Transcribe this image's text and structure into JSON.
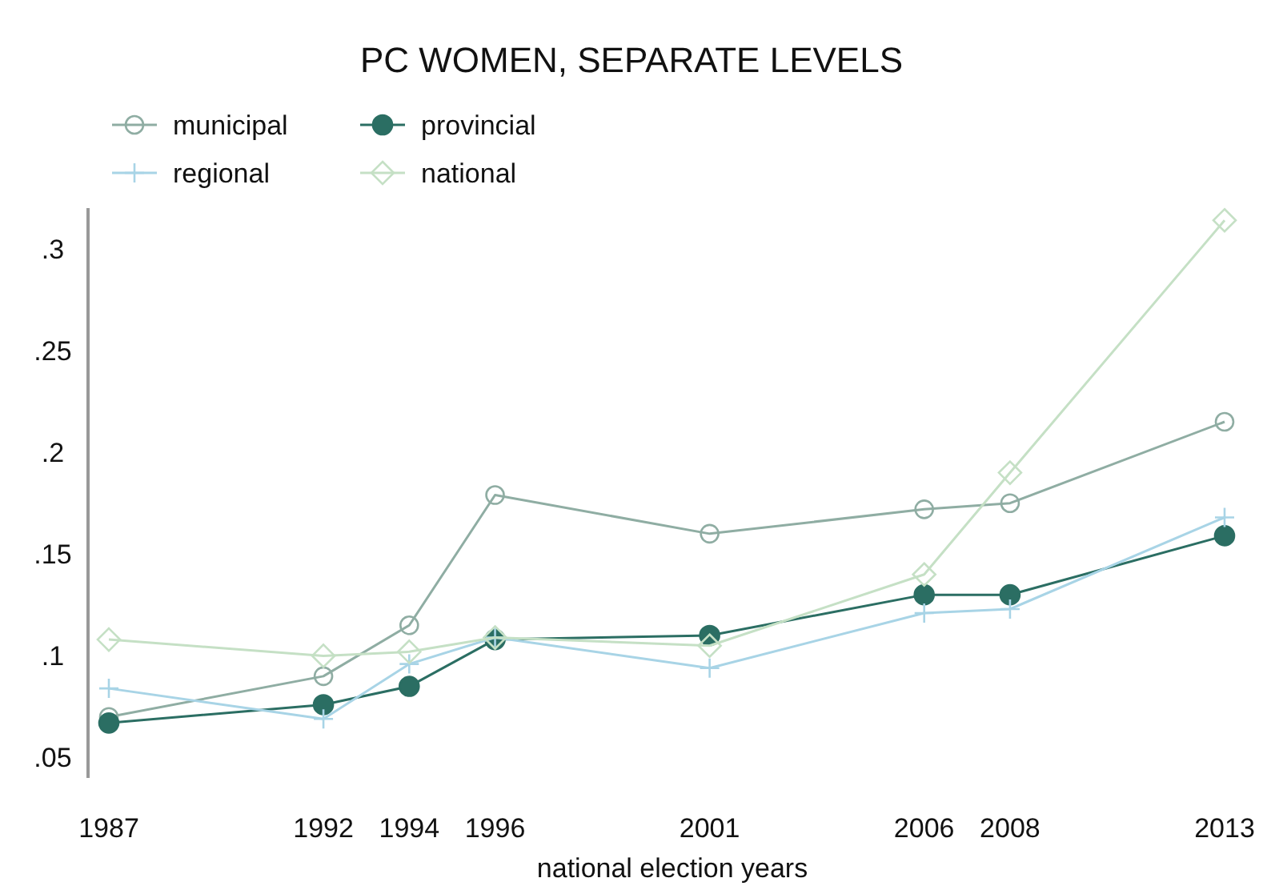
{
  "chart_data": {
    "type": "line",
    "title": "PC WOMEN, SEPARATE LEVELS",
    "xlabel": "national election years",
    "x": [
      1987,
      1992,
      1994,
      1996,
      2001,
      2006,
      2008,
      2013
    ],
    "series": [
      {
        "name": "municipal",
        "color": "#8fada3",
        "marker": "circle",
        "values": [
          0.07,
          0.09,
          0.115,
          0.179,
          0.16,
          0.172,
          0.175,
          0.215
        ]
      },
      {
        "name": "provincial",
        "color": "#2b6e63",
        "marker": "circle",
        "values": [
          0.067,
          0.076,
          0.085,
          0.108,
          0.11,
          0.13,
          0.13,
          0.159
        ]
      },
      {
        "name": "regional",
        "color": "#a8d4e6",
        "marker": "cross",
        "values": [
          0.084,
          0.069,
          0.096,
          0.109,
          0.094,
          0.121,
          0.123,
          0.168
        ]
      },
      {
        "name": "national",
        "color": "#c5e0c5",
        "marker": "diamond",
        "values": [
          0.108,
          0.1,
          0.102,
          0.109,
          0.105,
          0.14,
          0.19,
          0.314
        ]
      }
    ],
    "xlim": [
      1987,
      2013
    ],
    "xticks": [
      1987,
      1992,
      1994,
      1996,
      2001,
      2006,
      2008,
      2013
    ],
    "ylim": [
      0.04,
      0.32
    ],
    "yticks": [
      {
        "value": 0.05,
        "label": ".05"
      },
      {
        "value": 0.1,
        "label": ".1"
      },
      {
        "value": 0.15,
        "label": ".15"
      },
      {
        "value": 0.2,
        "label": ".2"
      },
      {
        "value": 0.25,
        "label": ".25"
      },
      {
        "value": 0.3,
        "label": ".3"
      }
    ],
    "grid": false,
    "legend": "top left"
  }
}
